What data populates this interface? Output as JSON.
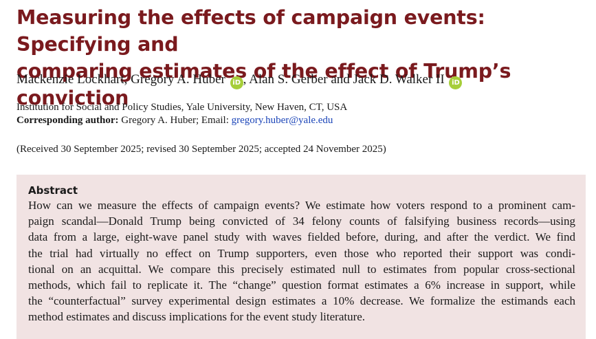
{
  "title": {
    "line1": "Measuring the effects of campaign events: Specifying and",
    "line2": "comparing estimates of the effect of Trump’s conviction"
  },
  "authors": {
    "a1": "Mackenzie Lockhart, ",
    "a2": "Gregory A. Huber",
    "a3": ", Alan S. Gerber and Jack D. Walker II",
    "orcid_label": "iD"
  },
  "affiliation": "Institution for Social and Policy Studies, Yale University, New Haven, CT, USA",
  "corresponding": {
    "label": "Corresponding author:",
    "text": " Gregory A. Huber; Email: ",
    "email": "gregory.huber@yale.edu"
  },
  "dates": "(Received 30 September 2025; revised 30 September 2025; accepted 24 November 2025)",
  "abstract": {
    "heading": "Abstract",
    "lines": [
      "How can we measure the effects of campaign events? We estimate how voters respond to a prominent cam-",
      "paign scandal—Donald Trump being convicted of 34 felony counts of falsifying business records—using",
      "data from a large, eight-wave panel study with waves fielded before, during, and after the verdict. We find",
      "the trial had virtually no effect on Trump supporters, even those who reported their support was condi-",
      "tional on an acquittal. We compare this precisely estimated null to estimates from popular cross-sectional",
      "methods, which fail to replicate it. The “change” question format estimates a 6% increase in support, while",
      "the “counterfactual” survey experimental design estimates a 10% decrease. We formalize the estimands each",
      "method estimates and discuss implications for the event study literature."
    ]
  },
  "colors": {
    "title": "#7a1a1e",
    "abstract_bg": "#f1e3e3",
    "link": "#1a44b8",
    "orcid": "#a6ce39"
  }
}
